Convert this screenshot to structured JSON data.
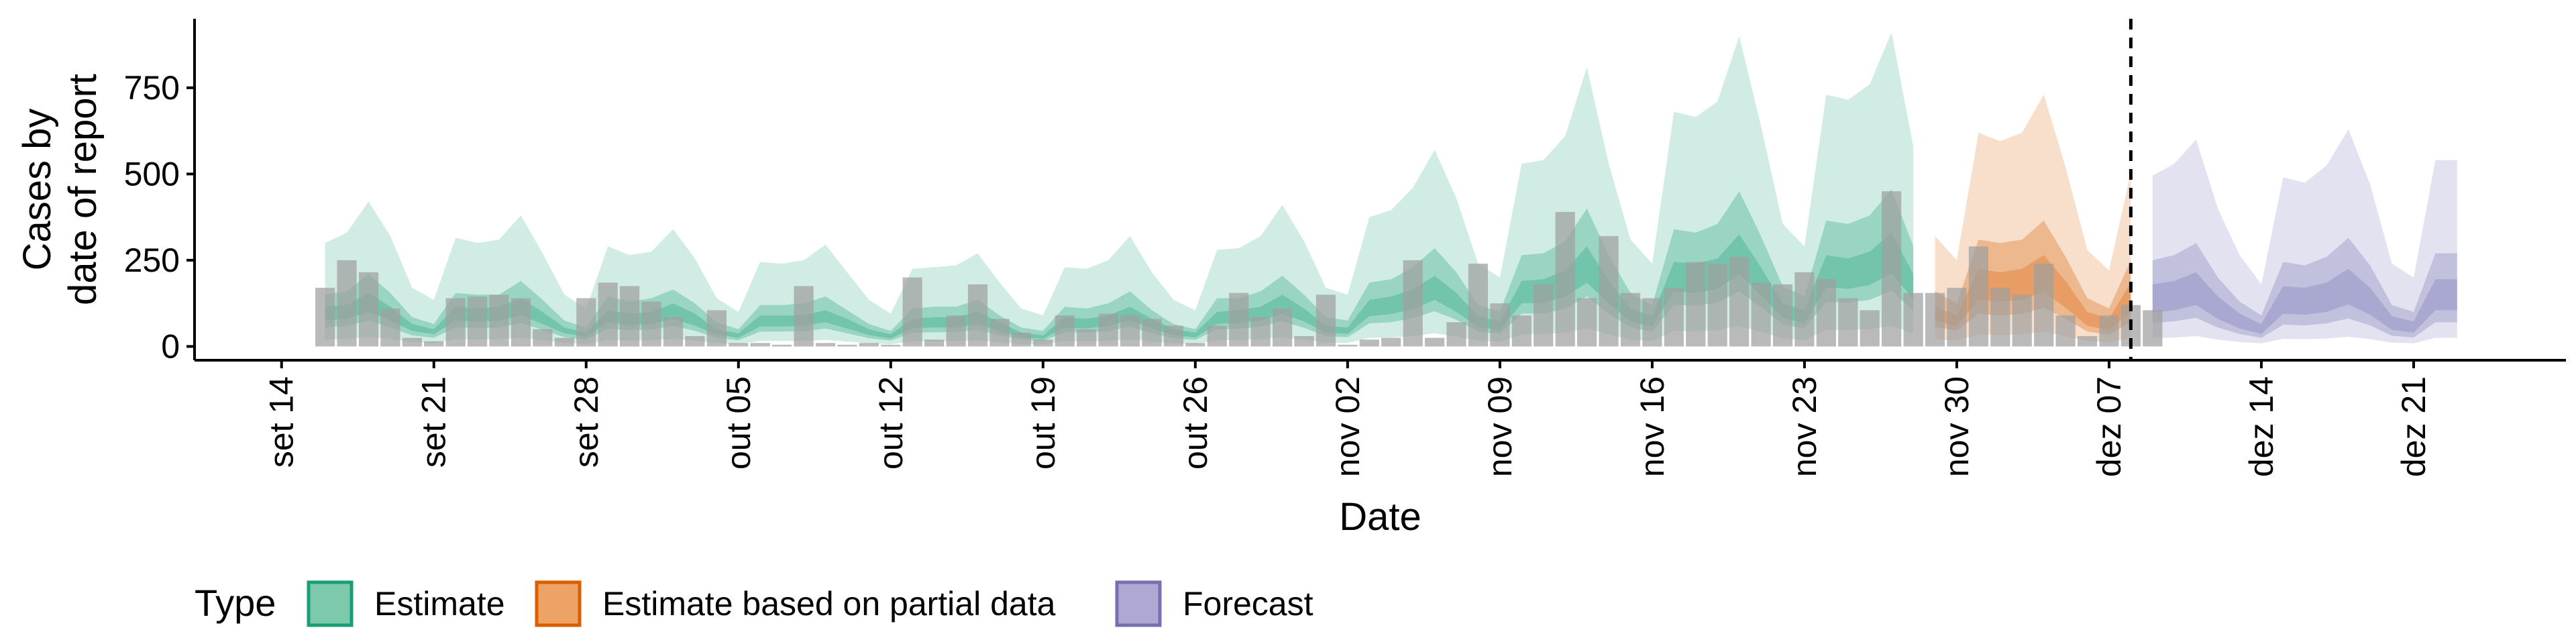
{
  "chart_data": {
    "type": "area",
    "xlabel": "Date",
    "ylabel_lines": [
      "Cases by",
      "date of report"
    ],
    "ylim": [
      -40,
      950
    ],
    "y_ticks": [
      0,
      250,
      500,
      750
    ],
    "x_ticks": [
      {
        "date": "2020-09-14",
        "label": "set 14"
      },
      {
        "date": "2020-09-21",
        "label": "set 21"
      },
      {
        "date": "2020-09-28",
        "label": "set 28"
      },
      {
        "date": "2020-10-05",
        "label": "out 05"
      },
      {
        "date": "2020-10-12",
        "label": "out 12"
      },
      {
        "date": "2020-10-19",
        "label": "out 19"
      },
      {
        "date": "2020-10-26",
        "label": "out 26"
      },
      {
        "date": "2020-11-02",
        "label": "nov 02"
      },
      {
        "date": "2020-11-09",
        "label": "nov 09"
      },
      {
        "date": "2020-11-16",
        "label": "nov 16"
      },
      {
        "date": "2020-11-23",
        "label": "nov 23"
      },
      {
        "date": "2020-11-30",
        "label": "nov 30"
      },
      {
        "date": "2020-12-07",
        "label": "dez 07"
      },
      {
        "date": "2020-12-14",
        "label": "dez 14"
      },
      {
        "date": "2020-12-21",
        "label": "dez 21"
      }
    ],
    "xlim": [
      "2020-09-10",
      "2020-12-28"
    ],
    "vline_date": "2020-12-08",
    "legend": {
      "title": "Type",
      "position": "bottom",
      "items": [
        {
          "label": "Estimate",
          "fill": "#7dc9ab",
          "border": "#1b9e77"
        },
        {
          "label": "Estimate based on partial data",
          "fill": "#eea366",
          "border": "#d95f02"
        },
        {
          "label": "Forecast",
          "fill": "#aea8d3",
          "border": "#7570b3"
        }
      ]
    },
    "colors": {
      "Estimate": "#1b9e77",
      "Estimate based on partial data": "#d95f02",
      "Forecast": "#7570b3",
      "bars": "#a0a0a0"
    },
    "start_date": "2020-09-16",
    "upper90": [
      300,
      330,
      420,
      320,
      170,
      135,
      315,
      300,
      310,
      380,
      270,
      150,
      110,
      290,
      265,
      275,
      340,
      255,
      140,
      100,
      245,
      240,
      250,
      295,
      215,
      135,
      95,
      225,
      230,
      235,
      270,
      185,
      110,
      90,
      230,
      225,
      250,
      320,
      215,
      135,
      105,
      280,
      285,
      320,
      410,
      305,
      170,
      150,
      375,
      395,
      460,
      570,
      430,
      240,
      200,
      530,
      540,
      610,
      810,
      530,
      310,
      240,
      680,
      665,
      710,
      900,
      640,
      355,
      290,
      730,
      715,
      760,
      910,
      580,
      320,
      250,
      620,
      595,
      620,
      730,
      520,
      280,
      220,
      505,
      495,
      530,
      600,
      400,
      265,
      180,
      490,
      475,
      525,
      630,
      470,
      240,
      200,
      540,
      540
    ],
    "upper50": [
      150,
      160,
      210,
      155,
      85,
      65,
      155,
      150,
      150,
      190,
      135,
      75,
      55,
      145,
      130,
      140,
      165,
      125,
      70,
      50,
      120,
      120,
      125,
      145,
      105,
      65,
      45,
      110,
      115,
      115,
      135,
      90,
      55,
      45,
      115,
      110,
      125,
      160,
      105,
      65,
      50,
      140,
      140,
      160,
      205,
      150,
      85,
      75,
      185,
      195,
      230,
      285,
      215,
      120,
      100,
      265,
      270,
      305,
      400,
      265,
      155,
      120,
      340,
      330,
      355,
      450,
      320,
      175,
      145,
      365,
      355,
      380,
      455,
      290,
      160,
      125,
      310,
      300,
      310,
      365,
      260,
      140,
      110,
      250,
      250,
      265,
      300,
      200,
      130,
      90,
      245,
      235,
      260,
      315,
      235,
      120,
      100,
      270,
      270
    ],
    "upper20": [
      115,
      120,
      155,
      115,
      65,
      50,
      115,
      110,
      115,
      140,
      100,
      55,
      40,
      105,
      95,
      100,
      125,
      95,
      50,
      38,
      90,
      90,
      90,
      105,
      80,
      50,
      35,
      80,
      85,
      85,
      100,
      70,
      40,
      32,
      85,
      80,
      90,
      115,
      80,
      50,
      40,
      100,
      105,
      115,
      150,
      110,
      60,
      55,
      135,
      145,
      165,
      205,
      155,
      88,
      72,
      190,
      195,
      220,
      290,
      190,
      110,
      88,
      245,
      240,
      255,
      325,
      230,
      125,
      105,
      265,
      255,
      275,
      330,
      210,
      115,
      90,
      225,
      215,
      225,
      265,
      190,
      100,
      80,
      185,
      180,
      190,
      215,
      145,
      95,
      65,
      175,
      170,
      185,
      225,
      170,
      88,
      72,
      195,
      195
    ],
    "lower20": [
      75,
      80,
      100,
      75,
      45,
      35,
      75,
      72,
      75,
      90,
      65,
      38,
      28,
      70,
      62,
      65,
      80,
      60,
      35,
      25,
      58,
      58,
      60,
      70,
      52,
      33,
      23,
      53,
      55,
      55,
      65,
      45,
      27,
      22,
      55,
      52,
      60,
      75,
      52,
      33,
      26,
      65,
      68,
      75,
      95,
      72,
      40,
      36,
      88,
      94,
      108,
      135,
      100,
      57,
      47,
      125,
      127,
      143,
      185,
      125,
      72,
      57,
      160,
      155,
      167,
      210,
      150,
      82,
      68,
      172,
      167,
      178,
      212,
      137,
      75,
      58,
      135,
      130,
      135,
      160,
      112,
      60,
      48,
      100,
      98,
      105,
      120,
      80,
      52,
      36,
      95,
      92,
      100,
      122,
      92,
      48,
      40,
      105,
      105
    ],
    "lower50": [
      55,
      60,
      75,
      55,
      32,
      25,
      55,
      53,
      55,
      68,
      48,
      27,
      20,
      52,
      47,
      49,
      60,
      45,
      25,
      18,
      43,
      43,
      44,
      52,
      38,
      24,
      17,
      40,
      41,
      42,
      48,
      33,
      20,
      16,
      41,
      40,
      44,
      57,
      38,
      24,
      19,
      50,
      51,
      57,
      73,
      54,
      30,
      27,
      67,
      70,
      82,
      102,
      77,
      43,
      36,
      95,
      96,
      109,
      145,
      95,
      55,
      43,
      121,
      118,
      127,
      160,
      114,
      63,
      52,
      130,
      127,
      135,
      162,
      103,
      57,
      45,
      95,
      90,
      95,
      112,
      80,
      43,
      34,
      70,
      68,
      73,
      83,
      55,
      36,
      25,
      63,
      61,
      67,
      81,
      61,
      31,
      26,
      70,
      70
    ],
    "lower90": [
      20,
      22,
      28,
      21,
      12,
      9,
      21,
      20,
      21,
      25,
      18,
      10,
      7,
      19,
      17,
      18,
      22,
      17,
      9,
      7,
      16,
      16,
      16,
      19,
      14,
      9,
      6,
      15,
      15,
      15,
      18,
      12,
      7,
      6,
      15,
      15,
      16,
      21,
      14,
      9,
      7,
      18,
      19,
      21,
      27,
      20,
      11,
      10,
      25,
      26,
      30,
      38,
      29,
      16,
      13,
      35,
      36,
      40,
      53,
      35,
      20,
      16,
      45,
      44,
      47,
      60,
      42,
      23,
      19,
      48,
      47,
      50,
      60,
      38,
      21,
      17,
      35,
      33,
      35,
      42,
      30,
      16,
      12,
      25,
      24,
      26,
      30,
      20,
      13,
      9,
      22,
      21,
      23,
      28,
      21,
      11,
      9,
      25,
      25
    ],
    "bars": [
      170,
      250,
      215,
      110,
      25,
      15,
      140,
      145,
      150,
      140,
      50,
      25,
      140,
      185,
      175,
      130,
      85,
      30,
      105,
      10,
      10,
      5,
      175,
      10,
      5,
      10,
      5,
      200,
      20,
      90,
      180,
      80,
      40,
      20,
      90,
      50,
      95,
      90,
      80,
      60,
      10,
      60,
      155,
      85,
      110,
      30,
      150,
      5,
      20,
      25,
      250,
      25,
      70,
      240,
      125,
      90,
      180,
      390,
      140,
      320,
      155,
      140,
      170,
      245,
      240,
      260,
      185,
      180,
      215,
      195,
      140,
      105,
      450,
      155,
      155,
      170,
      290,
      170,
      150,
      240,
      90,
      30,
      90,
      120,
      105
    ]
  }
}
